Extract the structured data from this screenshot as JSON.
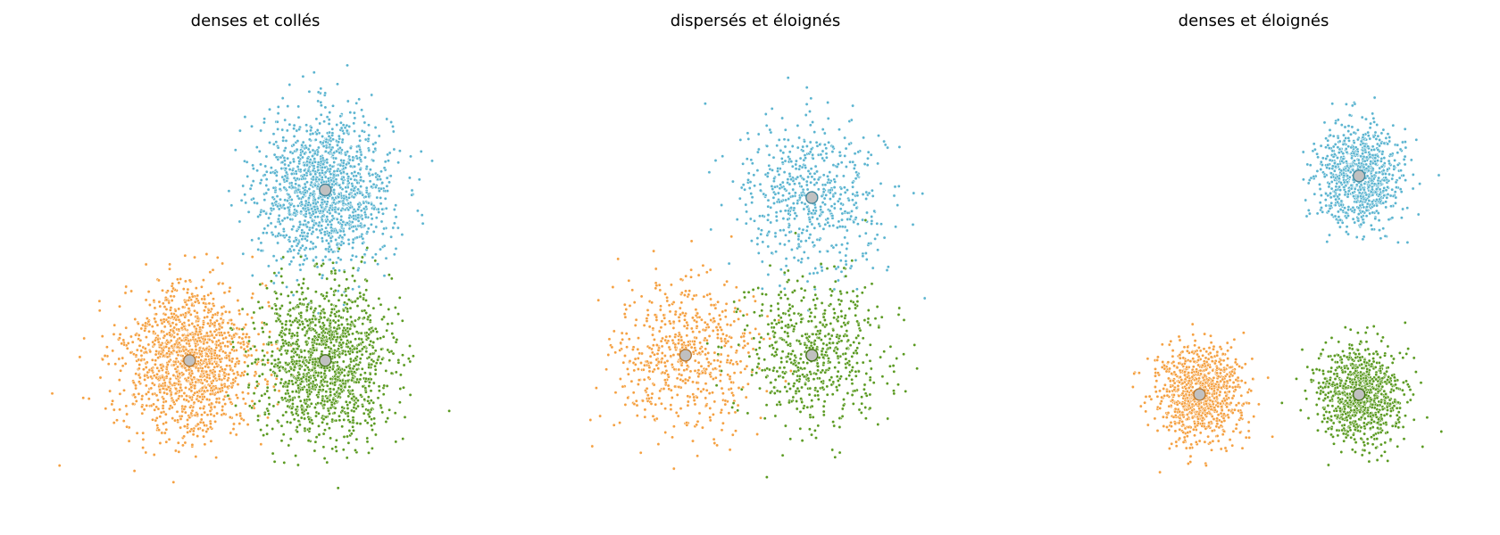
{
  "chart_data": [
    {
      "type": "scatter",
      "title": "denses et collés",
      "xlabel": "",
      "ylabel": "",
      "axes_visible": false,
      "grid": false,
      "legend": "none",
      "xlim": [
        -3.3,
        4.1
      ],
      "ylim": [
        -2.6,
        4.0
      ],
      "clusters": [
        {
          "color": "#5ab4d0",
          "centroid": [
            1.5,
            2.0
          ],
          "spread": 0.55,
          "n": 1400
        },
        {
          "color": "#f5a040",
          "centroid": [
            -0.75,
            -0.5
          ],
          "spread": 0.55,
          "n": 1400
        },
        {
          "color": "#5a9a20",
          "centroid": [
            1.5,
            -0.5
          ],
          "spread": 0.55,
          "n": 1400
        }
      ]
    },
    {
      "type": "scatter",
      "title": "dispersés et éloignés",
      "xlabel": "",
      "ylabel": "",
      "axes_visible": false,
      "grid": false,
      "legend": "none",
      "xlim": [
        -5.1,
        5.5
      ],
      "ylim": [
        -3.8,
        6.2
      ],
      "clusters": [
        {
          "color": "#5ab4d0",
          "centroid": [
            1.5,
            3.0
          ],
          "spread": 0.85,
          "n": 600
        },
        {
          "color": "#f5a040",
          "centroid": [
            -1.5,
            -0.5
          ],
          "spread": 0.85,
          "n": 600
        },
        {
          "color": "#5a9a20",
          "centroid": [
            1.5,
            -0.5
          ],
          "spread": 0.85,
          "n": 600
        }
      ]
    },
    {
      "type": "scatter",
      "title": "denses et éloignés",
      "xlabel": "",
      "ylabel": "",
      "axes_visible": false,
      "grid": false,
      "legend": "none",
      "xlim": [
        -4.2,
        7.0
      ],
      "ylim": [
        -4.0,
        6.3
      ],
      "clusters": [
        {
          "color": "#5ab4d0",
          "centroid": [
            4.0,
            3.5
          ],
          "spread": 0.55,
          "n": 900
        },
        {
          "color": "#f5a040",
          "centroid": [
            0.0,
            -1.5
          ],
          "spread": 0.55,
          "n": 900
        },
        {
          "color": "#5a9a20",
          "centroid": [
            4.0,
            -1.5
          ],
          "spread": 0.55,
          "n": 900
        }
      ]
    }
  ]
}
